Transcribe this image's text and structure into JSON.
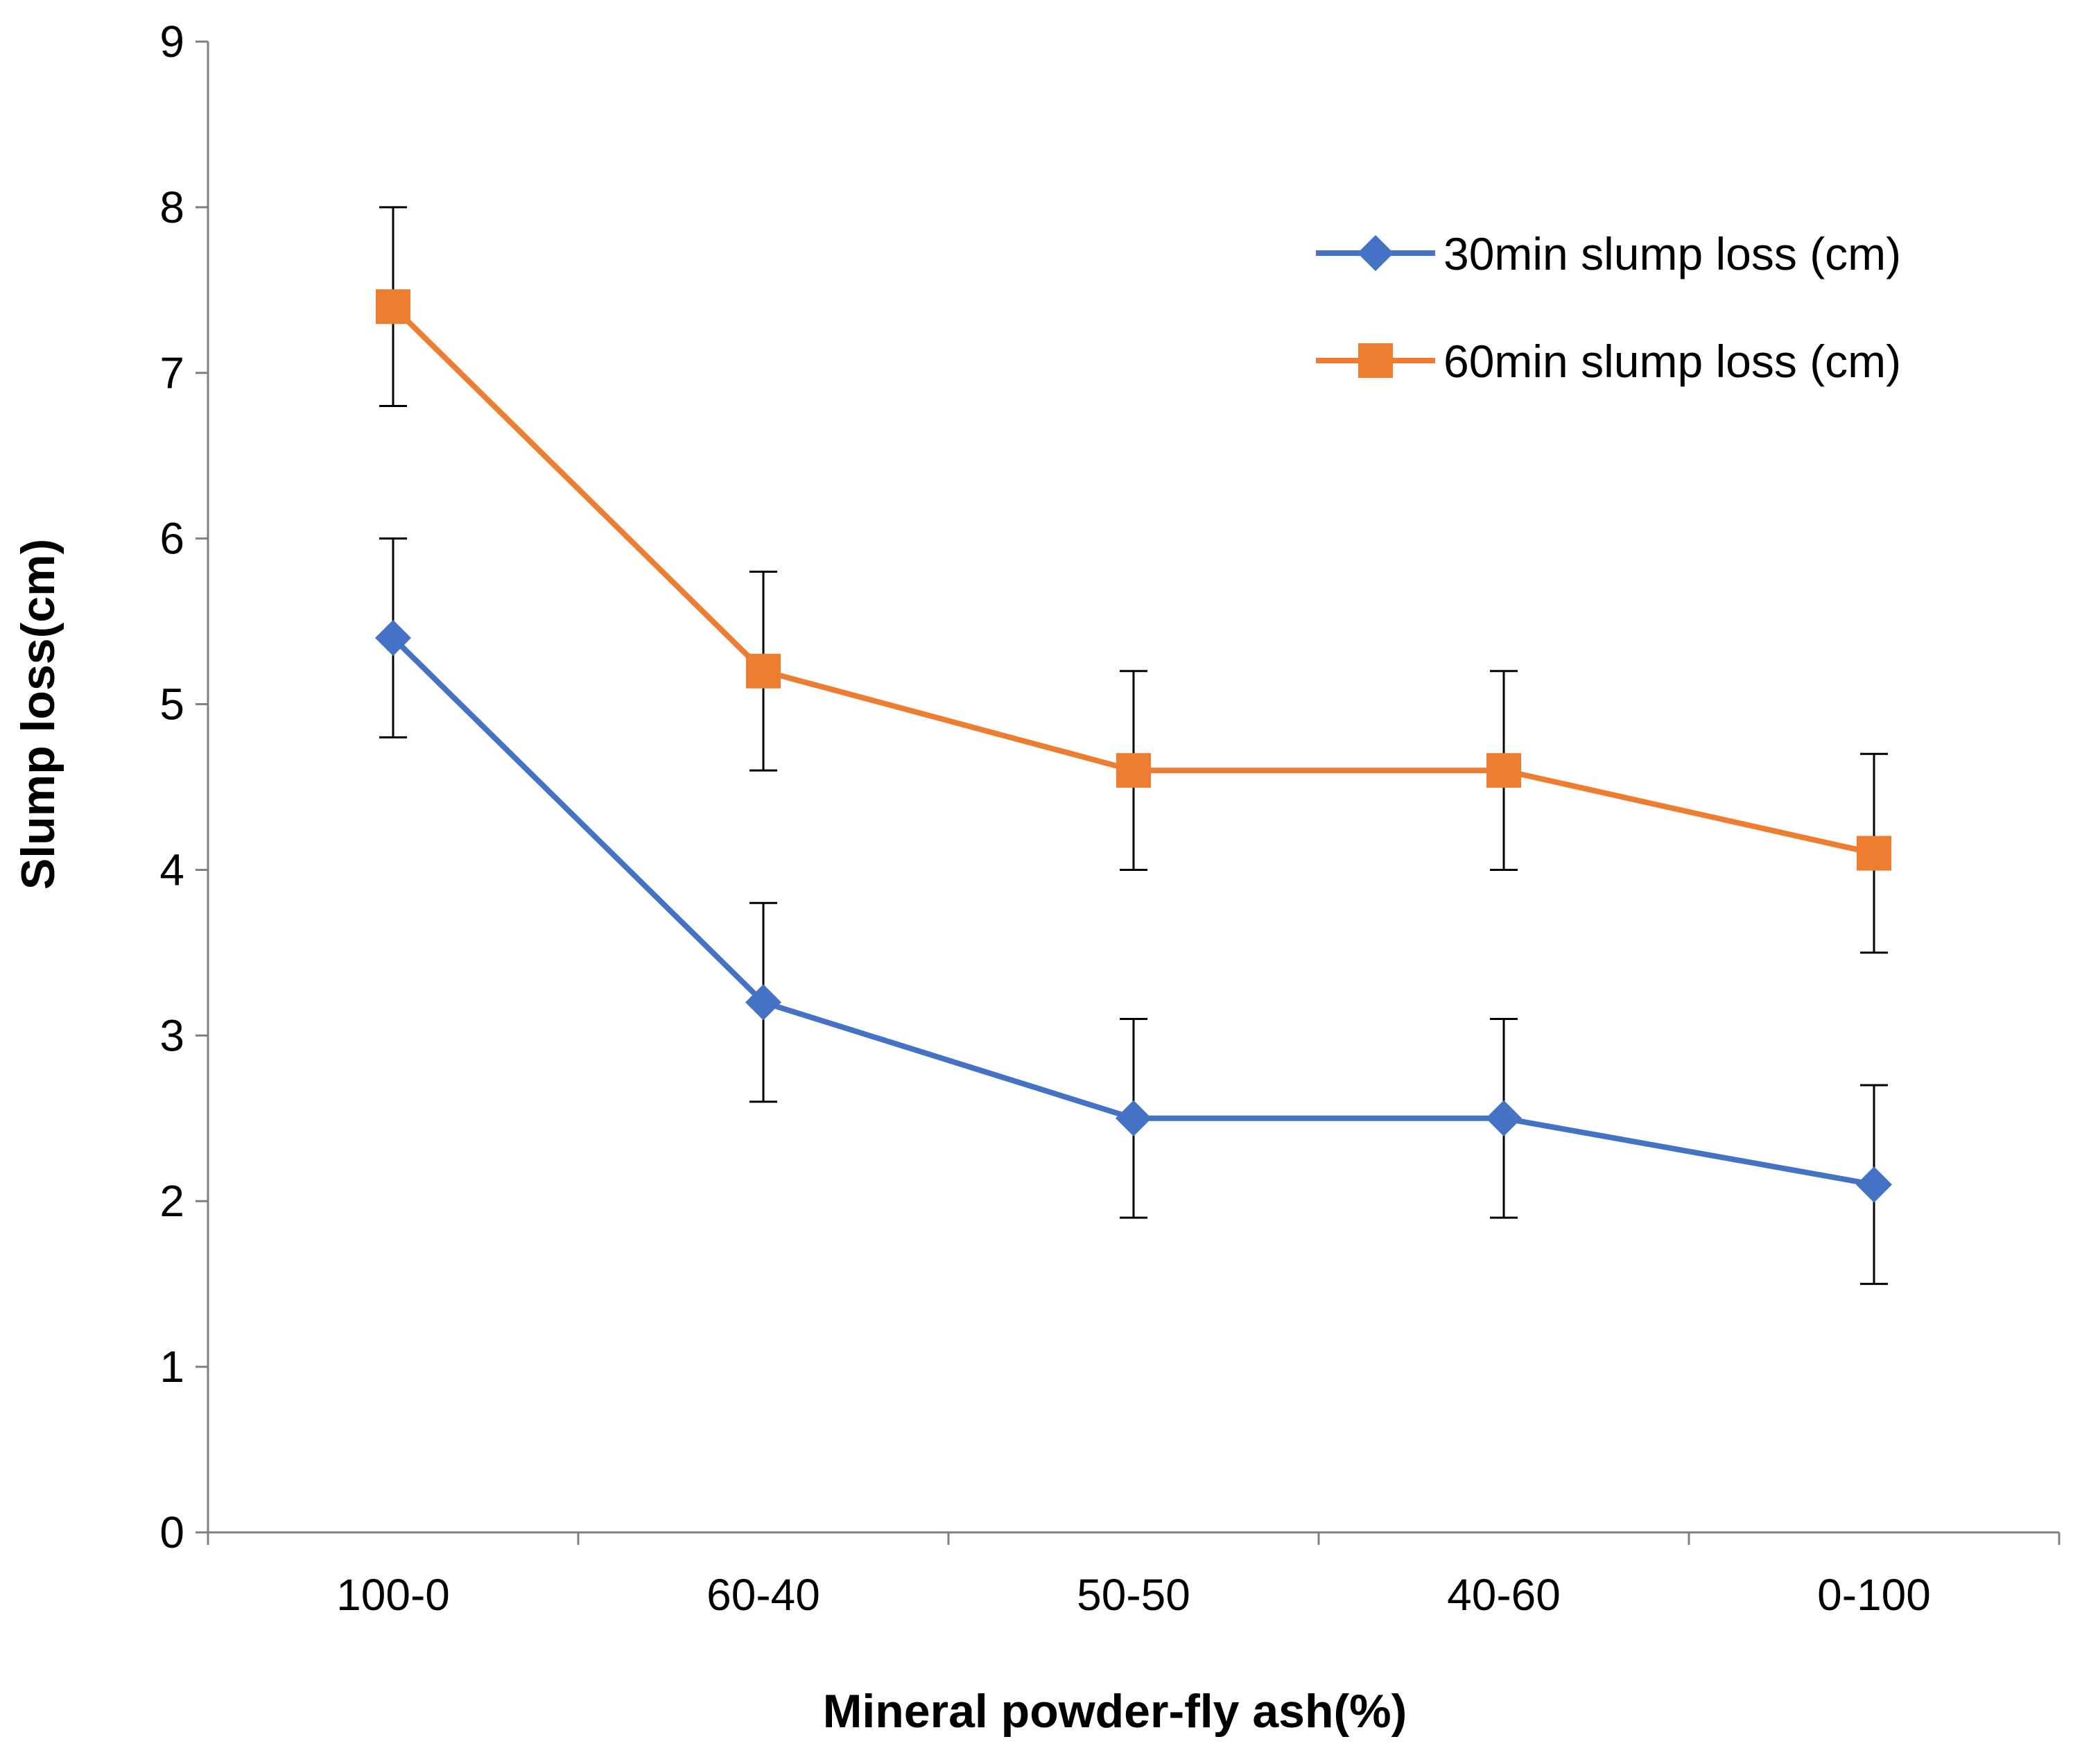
{
  "chart_data": {
    "type": "line",
    "title": "",
    "xlabel": "Mineral powder-fly ash(%)",
    "ylabel": "Slump loss(cm)",
    "categories": [
      "100-0",
      "60-40",
      "50-50",
      "40-60",
      "0-100"
    ],
    "ylim": [
      0,
      9
    ],
    "yticks": [
      "0",
      "1",
      "2",
      "3",
      "4",
      "5",
      "6",
      "7",
      "8",
      "9"
    ],
    "grid": false,
    "legend_position": "top-right",
    "error_bar": 0.6,
    "series": [
      {
        "name": "30min slump loss (cm)",
        "color": "#4472C4",
        "marker": "diamond",
        "values": [
          5.4,
          3.2,
          2.5,
          2.5,
          2.1
        ]
      },
      {
        "name": "60min slump loss (cm)",
        "color": "#ED7D31",
        "marker": "square",
        "values": [
          7.4,
          5.2,
          4.6,
          4.6,
          4.1
        ]
      }
    ]
  }
}
